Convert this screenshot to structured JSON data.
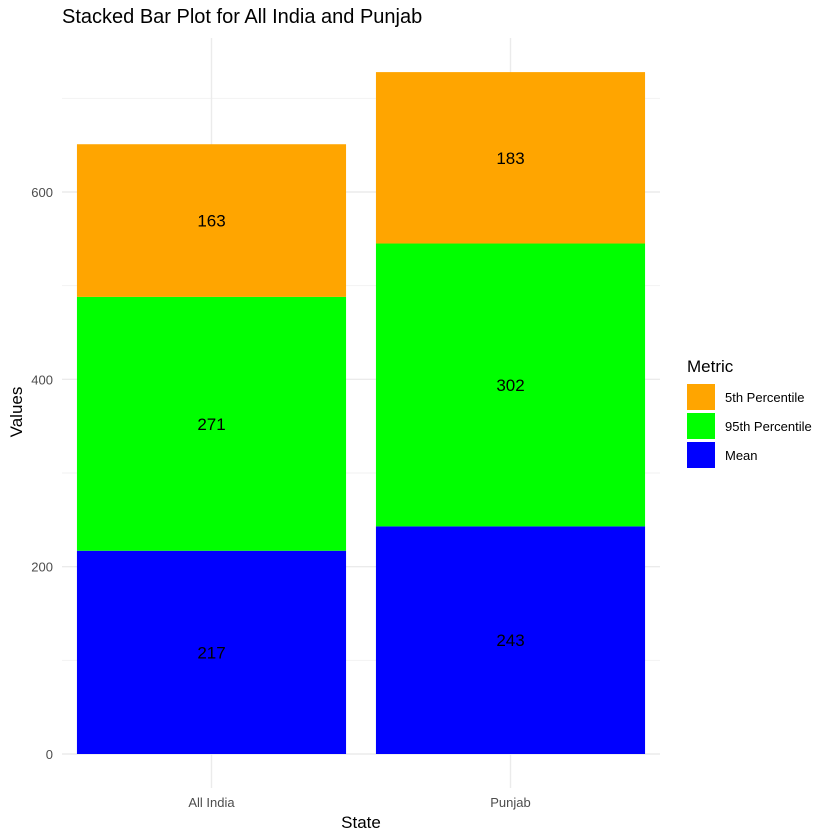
{
  "chart_data": {
    "type": "bar",
    "stacked": true,
    "title": "Stacked Bar Plot for All India and Punjab",
    "xlabel": "State",
    "ylabel": "Values",
    "categories": [
      "All India",
      "Punjab"
    ],
    "series": [
      {
        "name": "Mean",
        "values": [
          217,
          243
        ],
        "color": "#0000FF"
      },
      {
        "name": "95th Percentile",
        "values": [
          271,
          302
        ],
        "color": "#00FF00"
      },
      {
        "name": "5th Percentile",
        "values": [
          163,
          183
        ],
        "color": "#FFA500"
      }
    ],
    "ylim": [
      0,
      730
    ],
    "yticks": [
      0,
      200,
      400,
      600
    ],
    "grid": true,
    "legend": {
      "title": "Metric",
      "position": "right",
      "order": [
        "5th Percentile",
        "95th Percentile",
        "Mean"
      ]
    }
  }
}
